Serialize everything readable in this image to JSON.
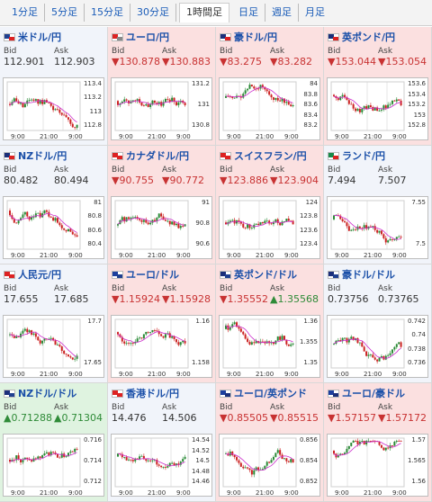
{
  "tabs": [
    {
      "label": "1分足"
    },
    {
      "label": "5分足"
    },
    {
      "label": "15分足"
    },
    {
      "label": "30分足"
    },
    {
      "label": "1時間足",
      "active": true
    },
    {
      "label": "日足"
    },
    {
      "label": "週足"
    },
    {
      "label": "月足"
    }
  ],
  "bid_label": "Bid",
  "ask_label": "Ask",
  "colors": {
    "bull": "#2a8a36",
    "bear": "#cc2222",
    "ma": "#cc2ecc",
    "up": "#2f8b38",
    "down": "#c83232"
  },
  "cells": [
    {
      "name": "米ドル/円",
      "flag": "us-jp",
      "state": "neutral",
      "bid": "112.901",
      "ask": "112.903",
      "bidArrow": "",
      "askArrow": "",
      "yticks": [
        "113.4",
        "113.2",
        "113",
        "112.8"
      ],
      "xticks": [
        "9:00",
        "21:00",
        "9:00"
      ]
    },
    {
      "name": "ユーロ/円",
      "flag": "jp",
      "state": "down",
      "bid": "▼130.878",
      "ask": "▼130.883",
      "bidArrow": "down",
      "askArrow": "down",
      "yticks": [
        "131.2",
        "131",
        "130.8"
      ],
      "xticks": [
        "9:00",
        "21:00",
        "9:00"
      ]
    },
    {
      "name": "豪ドル/円",
      "flag": "au-jp",
      "state": "down",
      "bid": "▼83.275",
      "ask": "▼83.282",
      "bidArrow": "down",
      "askArrow": "down",
      "yticks": [
        "84",
        "83.8",
        "83.6",
        "83.4",
        "83.2"
      ],
      "xticks": [
        "9:00",
        "21:00",
        "9:00"
      ]
    },
    {
      "name": "英ポンド/円",
      "flag": "uk-jp",
      "state": "down",
      "bid": "▼153.044",
      "ask": "▼153.054",
      "bidArrow": "down",
      "askArrow": "down",
      "yticks": [
        "153.6",
        "153.4",
        "153.2",
        "153",
        "152.8"
      ],
      "xticks": [
        "9:00",
        "21:00",
        "9:00"
      ]
    },
    {
      "name": "NZドル/円",
      "flag": "nz-jp",
      "state": "neutral",
      "bid": "80.482",
      "ask": "80.494",
      "bidArrow": "",
      "askArrow": "",
      "yticks": [
        "81",
        "80.8",
        "80.6",
        "80.4"
      ],
      "xticks": [
        "9:00",
        "21:00",
        "9:00"
      ]
    },
    {
      "name": "カナダドル/円",
      "flag": "ca-jp",
      "state": "down",
      "bid": "▼90.755",
      "ask": "▼90.772",
      "bidArrow": "down",
      "askArrow": "down",
      "yticks": [
        "91",
        "90.8",
        "90.6"
      ],
      "xticks": [
        "9:00",
        "21:00",
        "9:00"
      ]
    },
    {
      "name": "スイスフラン/円",
      "flag": "ch-jp",
      "state": "down",
      "bid": "▼123.886",
      "ask": "▼123.904",
      "bidArrow": "down",
      "askArrow": "down",
      "yticks": [
        "124",
        "123.8",
        "123.6",
        "123.4"
      ],
      "xticks": [
        "9:00",
        "21:00",
        "9:00"
      ]
    },
    {
      "name": "ランド/円",
      "flag": "za-jp",
      "state": "neutral",
      "bid": "7.494",
      "ask": "7.507",
      "bidArrow": "",
      "askArrow": "",
      "yticks": [
        "7.55",
        "7.5"
      ],
      "xticks": [
        "9:00",
        "21:00",
        "9:00"
      ]
    },
    {
      "name": "人民元/円",
      "flag": "cn-jp",
      "state": "neutral",
      "bid": "17.655",
      "ask": "17.685",
      "bidArrow": "",
      "askArrow": "",
      "yticks": [
        "17.7",
        "17.65"
      ],
      "xticks": [
        "9:00",
        "21:00",
        "9:00"
      ]
    },
    {
      "name": "ユーロ/ドル",
      "flag": "eu-us",
      "state": "down",
      "bid": "▼1.15924",
      "ask": "▼1.15928",
      "bidArrow": "down",
      "askArrow": "down",
      "yticks": [
        "1.16",
        "1.158"
      ],
      "xticks": [
        "9:00",
        "21:00",
        "9:00"
      ]
    },
    {
      "name": "英ポンド/ドル",
      "flag": "uk-us",
      "state": "down",
      "bid": "▼1.35552",
      "ask": "▲1.35568",
      "bidArrow": "down",
      "askArrow": "up",
      "yticks": [
        "1.36",
        "1.355",
        "1.35"
      ],
      "xticks": [
        "9:00",
        "21:00",
        "9:00"
      ]
    },
    {
      "name": "豪ドル/ドル",
      "flag": "au-us",
      "state": "neutral",
      "bid": "0.73756",
      "ask": "0.73765",
      "bidArrow": "",
      "askArrow": "",
      "yticks": [
        "0.742",
        "0.74",
        "0.738",
        "0.736"
      ],
      "xticks": [
        "9:00",
        "21:00",
        "9:00"
      ]
    },
    {
      "name": "NZドル/ドル",
      "flag": "nz-us",
      "state": "up",
      "bid": "▲0.71288",
      "ask": "▲0.71304",
      "bidArrow": "up",
      "askArrow": "up",
      "yticks": [
        "0.716",
        "0.714",
        "0.712"
      ],
      "xticks": [
        "9:00",
        "21:00",
        "9:00"
      ]
    },
    {
      "name": "香港ドル/円",
      "flag": "hk-jp",
      "state": "neutral",
      "bid": "14.476",
      "ask": "14.506",
      "bidArrow": "",
      "askArrow": "",
      "yticks": [
        "14.54",
        "14.52",
        "14.5",
        "14.48",
        "14.46"
      ],
      "xticks": [
        "9:00",
        "21:00",
        "9:00"
      ]
    },
    {
      "name": "ユーロ/英ポンド",
      "flag": "eu-uk",
      "state": "down",
      "bid": "▼0.85505",
      "ask": "▼0.85515",
      "bidArrow": "down",
      "askArrow": "down",
      "yticks": [
        "0.856",
        "0.854",
        "0.852"
      ],
      "xticks": [
        "9:00",
        "21:00",
        "9:00"
      ]
    },
    {
      "name": "ユーロ/豪ドル",
      "flag": "eu-au",
      "state": "down",
      "bid": "▼1.57157",
      "ask": "▼1.57172",
      "bidArrow": "down",
      "askArrow": "down",
      "yticks": [
        "1.57",
        "1.565",
        "1.56"
      ],
      "xticks": [
        "9:00",
        "21:00",
        "9:00"
      ]
    }
  ]
}
